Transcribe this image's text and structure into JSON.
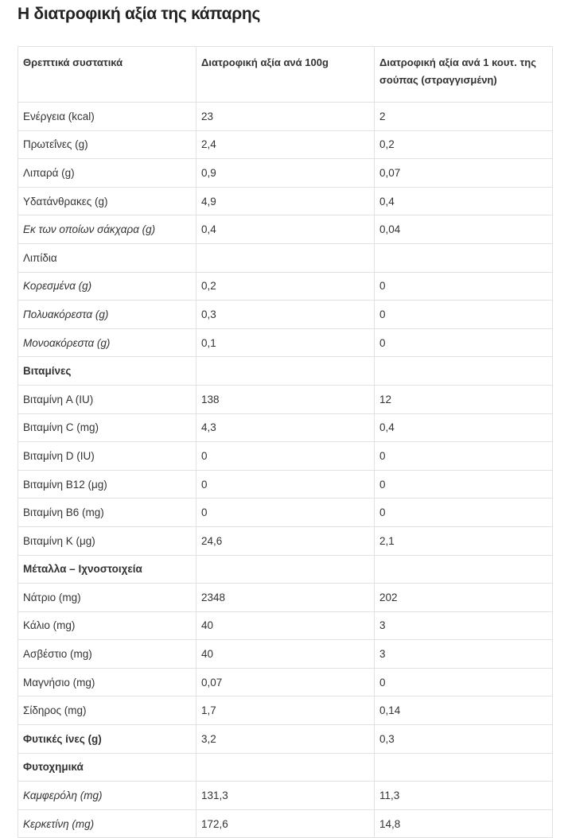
{
  "header": {
    "title": "Η διατροφική αξία της κάπαρης"
  },
  "table": {
    "columns": [
      "Θρεπτικά συστατικά",
      "Διατροφική αξία ανά 100g",
      "Διατροφική αξία ανά 1 κουτ. της σούπας (στραγγισμένη)"
    ],
    "rows": [
      {
        "cells": [
          "Ενέργεια (kcal)",
          "23",
          "2"
        ]
      },
      {
        "cells": [
          "Πρωτεΐνες (g)",
          "2,4",
          "0,2"
        ]
      },
      {
        "cells": [
          "Λιπαρά (g)",
          "0,9",
          "0,07"
        ]
      },
      {
        "cells": [
          "Υδατάνθρακες (g)",
          "4,9",
          "0,4"
        ]
      },
      {
        "cells": [
          "Εκ των οποίων σάκχαρα (g)",
          "0,4",
          "0,04"
        ],
        "style": "italic"
      },
      {
        "cells": [
          "Λιπίδια",
          null,
          null
        ]
      },
      {
        "cells": [
          "Κορεσμένα (g)",
          "0,2",
          "0"
        ],
        "style": "italic"
      },
      {
        "cells": [
          "Πολυακόρεστα (g)",
          "0,3",
          "0"
        ],
        "style": "italic"
      },
      {
        "cells": [
          "Μονοακόρεστα (g)",
          "0,1",
          "0"
        ],
        "style": "italic"
      },
      {
        "cells": [
          "Βιταμίνες",
          null,
          null
        ],
        "style": "bold"
      },
      {
        "cells": [
          "Βιταμίνη A  (IU)",
          "138",
          "12"
        ]
      },
      {
        "cells": [
          "Βιταμίνη C (mg)",
          "4,3",
          "0,4"
        ]
      },
      {
        "cells": [
          "Βιταμίνη D (IU)",
          "0",
          "0"
        ]
      },
      {
        "cells": [
          "Βιταμίνη B12 (μg)",
          "0",
          "0"
        ]
      },
      {
        "cells": [
          "Βιταμίνη B6 (mg)",
          "0",
          "0"
        ]
      },
      {
        "cells": [
          "Βιταμίνη K (μg)",
          "24,6",
          "2,1"
        ]
      },
      {
        "cells": [
          "Μέταλλα – Ιχνοστοιχεία",
          null,
          null
        ],
        "style": "bold"
      },
      {
        "cells": [
          "Νάτριο (mg)",
          "2348",
          "202"
        ]
      },
      {
        "cells": [
          "Κάλιο (mg)",
          "40",
          "3"
        ]
      },
      {
        "cells": [
          "Ασβέστιο (mg)",
          "40",
          "3"
        ]
      },
      {
        "cells": [
          "Μαγνήσιο (mg)",
          "0,07",
          "0"
        ]
      },
      {
        "cells": [
          "Σίδηρος (mg)",
          "1,7",
          "0,14"
        ]
      },
      {
        "cells": [
          "Φυτικές ίνες (g)",
          "3,2",
          "0,3"
        ],
        "style": "bold"
      },
      {
        "cells": [
          "Φυτοχημικά",
          null,
          null
        ],
        "style": "bold"
      },
      {
        "cells": [
          "Καμφερόλη (mg)",
          "131,3",
          "11,3"
        ],
        "style": "italic"
      },
      {
        "cells": [
          "Κερκετίνη (mg)",
          "172,6",
          "14,8"
        ],
        "style": "italic"
      }
    ]
  }
}
